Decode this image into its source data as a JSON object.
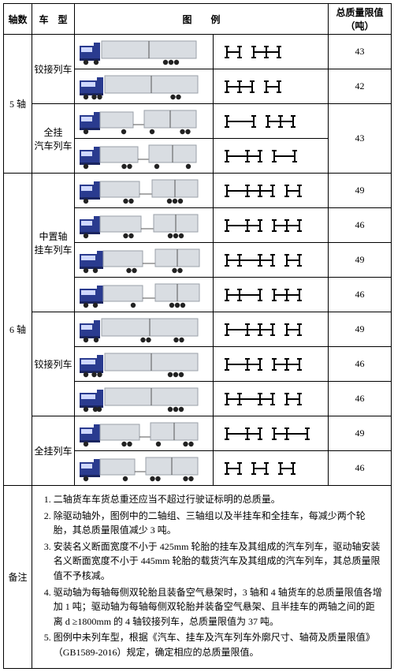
{
  "colors": {
    "cab": "#2a3b8f",
    "cabShadow": "#1a2560",
    "trailer": "#d9dde2",
    "trailerEdge": "#9aa0a8",
    "wheel": "#222",
    "axleLine": "#000"
  },
  "headers": {
    "axle": "轴数",
    "type": "车　型",
    "example": "图　　例",
    "limit": "总质量限值（吨）"
  },
  "groups": [
    {
      "axle": "5 轴",
      "types": [
        {
          "name": "铰接列车",
          "rows": [
            {
              "truck": "semi-2-3",
              "axleDiagram": "I-I  I-I-I",
              "limit": "43"
            },
            {
              "truck": "semi-3-2",
              "axleDiagram": "I-I-I   I-I",
              "limit": "42"
            }
          ]
        },
        {
          "name": "全挂\n汽车列车",
          "rows": [
            {
              "truck": "full-2t-3t",
              "axleDiagram": "I---I  I-I-I",
              "limit": "43",
              "limitRowspan": 2
            },
            {
              "truck": "full-3t-2t",
              "axleDiagram": "I--I-I   I--I",
              "limit": null
            }
          ]
        }
      ]
    },
    {
      "axle": "6 轴",
      "types": [
        {
          "name": "中置轴\n挂车列车",
          "rows": [
            {
              "truck": "mid-2-4",
              "axleDiagram": "I--I-I-I  I-I",
              "limit": "49"
            },
            {
              "truck": "mid-3-3a",
              "axleDiagram": "I--I-I   I-I-I",
              "limit": "46"
            },
            {
              "truck": "mid-3-3b",
              "axleDiagram": "I-I--I-I  I-I",
              "limit": "49"
            },
            {
              "truck": "mid-3-3c",
              "axleDiagram": "I-I--I   I-I-I",
              "limit": "46"
            }
          ]
        },
        {
          "name": "铰接列车",
          "rows": [
            {
              "truck": "semi-2-4",
              "axleDiagram": "I--I-I-I   I-I",
              "limit": "49"
            },
            {
              "truck": "semi-3-3a",
              "axleDiagram": "I--I-I   I-I-I",
              "limit": "46"
            },
            {
              "truck": "semi-3-3b",
              "axleDiagram": "I-I--I-I   I-I",
              "limit": "46"
            }
          ]
        },
        {
          "name": "全挂列车",
          "rows": [
            {
              "truck": "full-3-3",
              "axleDiagram": "I--I-I  I-I--I",
              "limit": "49"
            },
            {
              "truck": "full-2-4",
              "axleDiagram": "I-I  I-I  I-I",
              "limit": "46"
            }
          ]
        }
      ]
    }
  ],
  "notesLabel": "备注",
  "notes": [
    "二轴货车车货总重还应当不超过行驶证标明的总质量。",
    "除驱动轴外，图例中的二轴组、三轴组以及半挂车和全挂车，每减少两个轮胎，其总质量限值减少 3 吨。",
    "安装名义断面宽度不小于 425mm 轮胎的挂车及其组成的汽车列车，驱动轴安装名义断面宽度不小于 445mm 轮胎的载货汽车及其组成的汽车列车，其总质量限值不予核减。",
    "驱动轴为每轴每侧双轮胎且装备空气悬架时，3 轴和 4 轴货车的总质量限值各增加 1 吨；驱动轴为每轴每侧双轮胎并装备空气悬架、且半挂车的两轴之间的距离 d ≥1800mm 的 4 轴铰接列车，总质量限值为 37 吨。",
    "图例中未列车型，根据《汽车、挂车及汽车列车外廓尺寸、轴荷及质量限值》（GB1589-2016）规定，确定相应的总质量限值。"
  ]
}
